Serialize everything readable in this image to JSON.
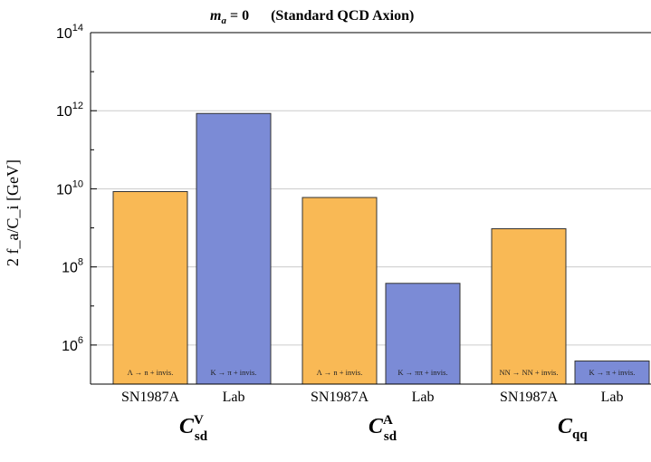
{
  "chart_data": {
    "type": "bar",
    "title": {
      "math": "m",
      "math_sub": "a",
      "math_rest": " = 0",
      "text": "(Standard QCD Axion)"
    },
    "ylabel": "2 f_a/C_i [GeV]",
    "yscale": "log",
    "ylim": [
      100000,
      100000000000000
    ],
    "yticks": [
      {
        "base": "10",
        "exp": "6"
      },
      {
        "base": "10",
        "exp": "8"
      },
      {
        "base": "10",
        "exp": "10"
      },
      {
        "base": "10",
        "exp": "12"
      },
      {
        "base": "10",
        "exp": "14"
      }
    ],
    "ytick_values": [
      1000000,
      100000000,
      10000000000,
      1000000000000,
      100000000000000
    ],
    "grid": "horizontal",
    "colors": {
      "SN1987A": "#f9b955",
      "Lab": "#7b8bd6",
      "grid": "#cccccc",
      "bar_edge": "#333333"
    },
    "groups": [
      {
        "label": "C",
        "sup": "V",
        "sub": "sd",
        "bars": [
          {
            "category": "SN1987A",
            "value": 8500000000,
            "note": "Λ → n + invis."
          },
          {
            "category": "Lab",
            "value": 850000000000,
            "note": "K → π + invis."
          }
        ]
      },
      {
        "label": "C",
        "sup": "A",
        "sub": "sd",
        "bars": [
          {
            "category": "SN1987A",
            "value": 6000000000,
            "note": "Λ → n + invis."
          },
          {
            "category": "Lab",
            "value": 38000000,
            "note": "K → ππ + invis."
          }
        ]
      },
      {
        "label": "C",
        "sup": "",
        "sub": "qq",
        "bars": [
          {
            "category": "SN1987A",
            "value": 950000000,
            "note": "NN → NN + invis."
          },
          {
            "category": "Lab",
            "value": 390000,
            "note": "K → π + invis."
          }
        ]
      }
    ]
  }
}
